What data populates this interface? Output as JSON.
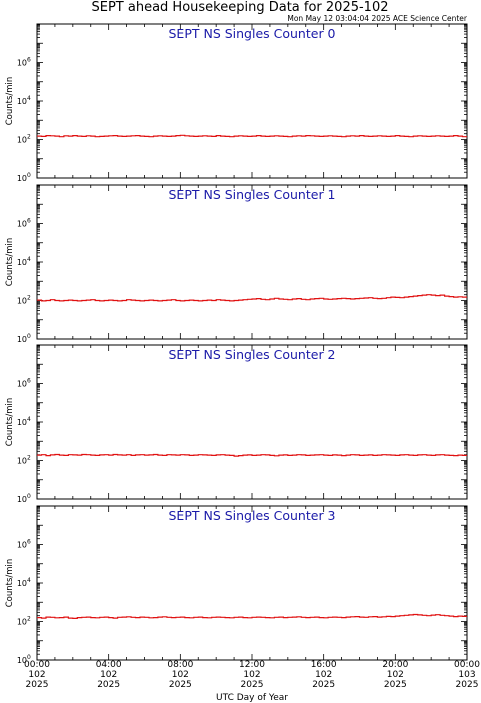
{
  "header": {
    "title": "SEPT ahead Housekeeping Data for 2025-102",
    "timestamp": "Mon May 12 03:04:04 2025 ACE Science Center"
  },
  "colors": {
    "trace": "#e01010",
    "panel_title": "#1a1aa8",
    "axis": "#000000"
  },
  "chart_data": [
    {
      "type": "line",
      "title": "SEPT NS Singles Counter 0",
      "ylabel": "Counts/min",
      "yscale": "log",
      "ylim": [
        1,
        100000000
      ],
      "xlim": [
        0,
        24
      ],
      "series": [
        {
          "values": [
            150,
            145,
            160,
            155,
            150,
            140,
            155,
            150,
            160,
            150,
            145,
            155,
            150,
            140,
            145,
            150,
            155,
            160,
            150,
            145,
            150,
            155,
            160,
            150,
            145,
            140,
            150,
            155,
            150,
            145,
            150,
            160,
            165,
            155,
            150,
            145,
            150,
            155,
            150,
            145,
            160,
            150,
            145,
            140,
            150,
            155,
            150,
            145,
            150,
            160,
            150,
            145,
            150,
            155,
            150,
            145,
            140,
            150,
            155,
            150,
            160,
            155,
            150,
            145,
            150,
            155,
            150,
            145,
            140,
            150,
            155,
            150,
            160,
            150,
            145,
            150,
            155,
            150,
            145,
            150,
            160,
            150,
            145,
            140,
            150,
            155,
            150,
            145,
            150,
            155,
            150,
            145,
            150,
            160,
            150,
            140
          ]
        }
      ]
    },
    {
      "type": "line",
      "title": "SEPT NS Singles Counter 1",
      "ylabel": "Counts/min",
      "yscale": "log",
      "ylim": [
        1,
        100000000
      ],
      "xlim": [
        0,
        24
      ],
      "series": [
        {
          "values": [
            105,
            95,
            100,
            110,
            100,
            95,
            100,
            105,
            100,
            95,
            100,
            105,
            110,
            100,
            95,
            100,
            105,
            100,
            95,
            100,
            110,
            105,
            100,
            95,
            100,
            105,
            100,
            95,
            100,
            105,
            110,
            100,
            95,
            100,
            105,
            100,
            95,
            100,
            105,
            100,
            110,
            105,
            100,
            95,
            100,
            105,
            110,
            115,
            120,
            125,
            115,
            110,
            120,
            130,
            120,
            115,
            110,
            120,
            125,
            115,
            110,
            120,
            125,
            130,
            120,
            115,
            120,
            125,
            130,
            125,
            120,
            125,
            130,
            135,
            140,
            130,
            125,
            130,
            140,
            150,
            145,
            140,
            150,
            160,
            170,
            180,
            190,
            200,
            190,
            180,
            190,
            170,
            160,
            150,
            155,
            150
          ]
        }
      ]
    },
    {
      "type": "line",
      "title": "SEPT NS Singles Counter 2",
      "ylabel": "Counts/min",
      "yscale": "log",
      "ylim": [
        1,
        100000000
      ],
      "xlim": [
        0,
        24
      ],
      "series": [
        {
          "values": [
            190,
            200,
            180,
            195,
            205,
            190,
            185,
            200,
            195,
            190,
            205,
            200,
            190,
            185,
            195,
            200,
            190,
            205,
            195,
            190,
            200,
            185,
            195,
            200,
            190,
            195,
            205,
            190,
            185,
            200,
            195,
            190,
            200,
            195,
            185,
            190,
            200,
            195,
            190,
            185,
            195,
            200,
            190,
            185,
            170,
            180,
            190,
            195,
            185,
            190,
            200,
            195,
            185,
            175,
            190,
            195,
            185,
            190,
            200,
            195,
            185,
            190,
            195,
            200,
            190,
            185,
            195,
            190,
            180,
            190,
            200,
            195,
            185,
            190,
            195,
            185,
            190,
            200,
            195,
            190,
            185,
            195,
            200,
            190,
            185,
            195,
            200,
            190,
            185,
            195,
            200,
            190,
            185,
            180,
            190,
            185
          ]
        }
      ]
    },
    {
      "type": "line",
      "title": "SEPT NS Singles Counter 3",
      "ylabel": "Counts/min",
      "yscale": "log",
      "ylim": [
        1,
        100000000
      ],
      "xlim": [
        0,
        24
      ],
      "series": [
        {
          "values": [
            160,
            150,
            170,
            165,
            155,
            160,
            170,
            150,
            145,
            160,
            165,
            170,
            160,
            155,
            165,
            170,
            160,
            150,
            165,
            170,
            175,
            165,
            160,
            170,
            165,
            155,
            160,
            170,
            175,
            165,
            160,
            165,
            170,
            160,
            155,
            165,
            170,
            160,
            155,
            165,
            170,
            165,
            160,
            155,
            165,
            170,
            160,
            155,
            165,
            170,
            165,
            160,
            155,
            165,
            170,
            160,
            165,
            170,
            175,
            165,
            160,
            165,
            170,
            160,
            155,
            165,
            170,
            165,
            160,
            170,
            175,
            180,
            170,
            165,
            175,
            180,
            170,
            175,
            185,
            180,
            190,
            200,
            210,
            220,
            230,
            220,
            210,
            200,
            215,
            225,
            210,
            200,
            190,
            180,
            190,
            185
          ]
        }
      ]
    }
  ],
  "xaxis": {
    "label": "UTC Day of Year",
    "ticks": [
      {
        "time": "00:00",
        "day": "102",
        "year": "2025"
      },
      {
        "time": "04:00",
        "day": "102",
        "year": "2025"
      },
      {
        "time": "08:00",
        "day": "102",
        "year": "2025"
      },
      {
        "time": "12:00",
        "day": "102",
        "year": "2025"
      },
      {
        "time": "16:00",
        "day": "102",
        "year": "2025"
      },
      {
        "time": "20:00",
        "day": "102",
        "year": "2025"
      },
      {
        "time": "00:00",
        "day": "103",
        "year": "2025"
      }
    ]
  },
  "yaxis_ticks": [
    {
      "base": "10",
      "exp": "0",
      "value": 1
    },
    {
      "base": "10",
      "exp": "2",
      "value": 100
    },
    {
      "base": "10",
      "exp": "4",
      "value": 10000
    },
    {
      "base": "10",
      "exp": "6",
      "value": 1000000
    }
  ]
}
